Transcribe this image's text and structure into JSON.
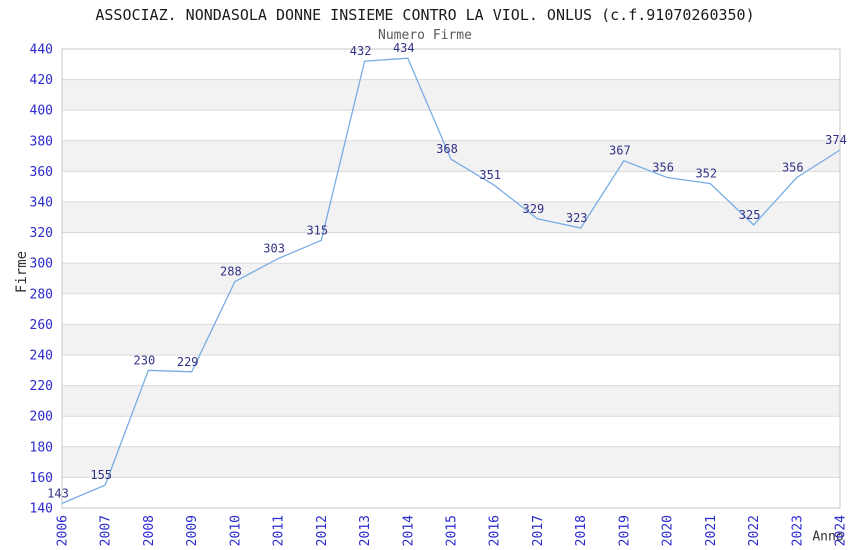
{
  "chart_data": {
    "type": "line",
    "title": "ASSOCIAZ. NONDASOLA DONNE INSIEME CONTRO LA VIOL. ONLUS (c.f.91070260350)",
    "subtitle": "Numero Firme",
    "xlabel": "Anno",
    "ylabel": "Firme",
    "categories": [
      "2006",
      "2007",
      "2008",
      "2009",
      "2010",
      "2011",
      "2012",
      "2013",
      "2014",
      "2015",
      "2016",
      "2017",
      "2018",
      "2019",
      "2020",
      "2021",
      "2022",
      "2023",
      "2024"
    ],
    "series": [
      {
        "name": "Numero Firme",
        "values": [
          143,
          155,
          230,
          229,
          288,
          303,
          315,
          432,
          434,
          368,
          351,
          329,
          323,
          367,
          356,
          352,
          325,
          356,
          374
        ]
      }
    ],
    "ylim": [
      140,
      440
    ],
    "ytick_step": 20,
    "xtick_rotation": -90,
    "grid": "horizontal gridlines with alternating shaded bands",
    "legend_position": "none",
    "data_labels": true,
    "colors": {
      "line": "#79ade4",
      "data_label": "#323286",
      "tick_label": "#2a2ace",
      "band": "#f2f2f2",
      "gridline": "#d9d9d9",
      "plot_border": "#c8c8c8",
      "title": "#1b1b1b",
      "subtitle": "#595959",
      "axis_title": "#333333"
    }
  }
}
